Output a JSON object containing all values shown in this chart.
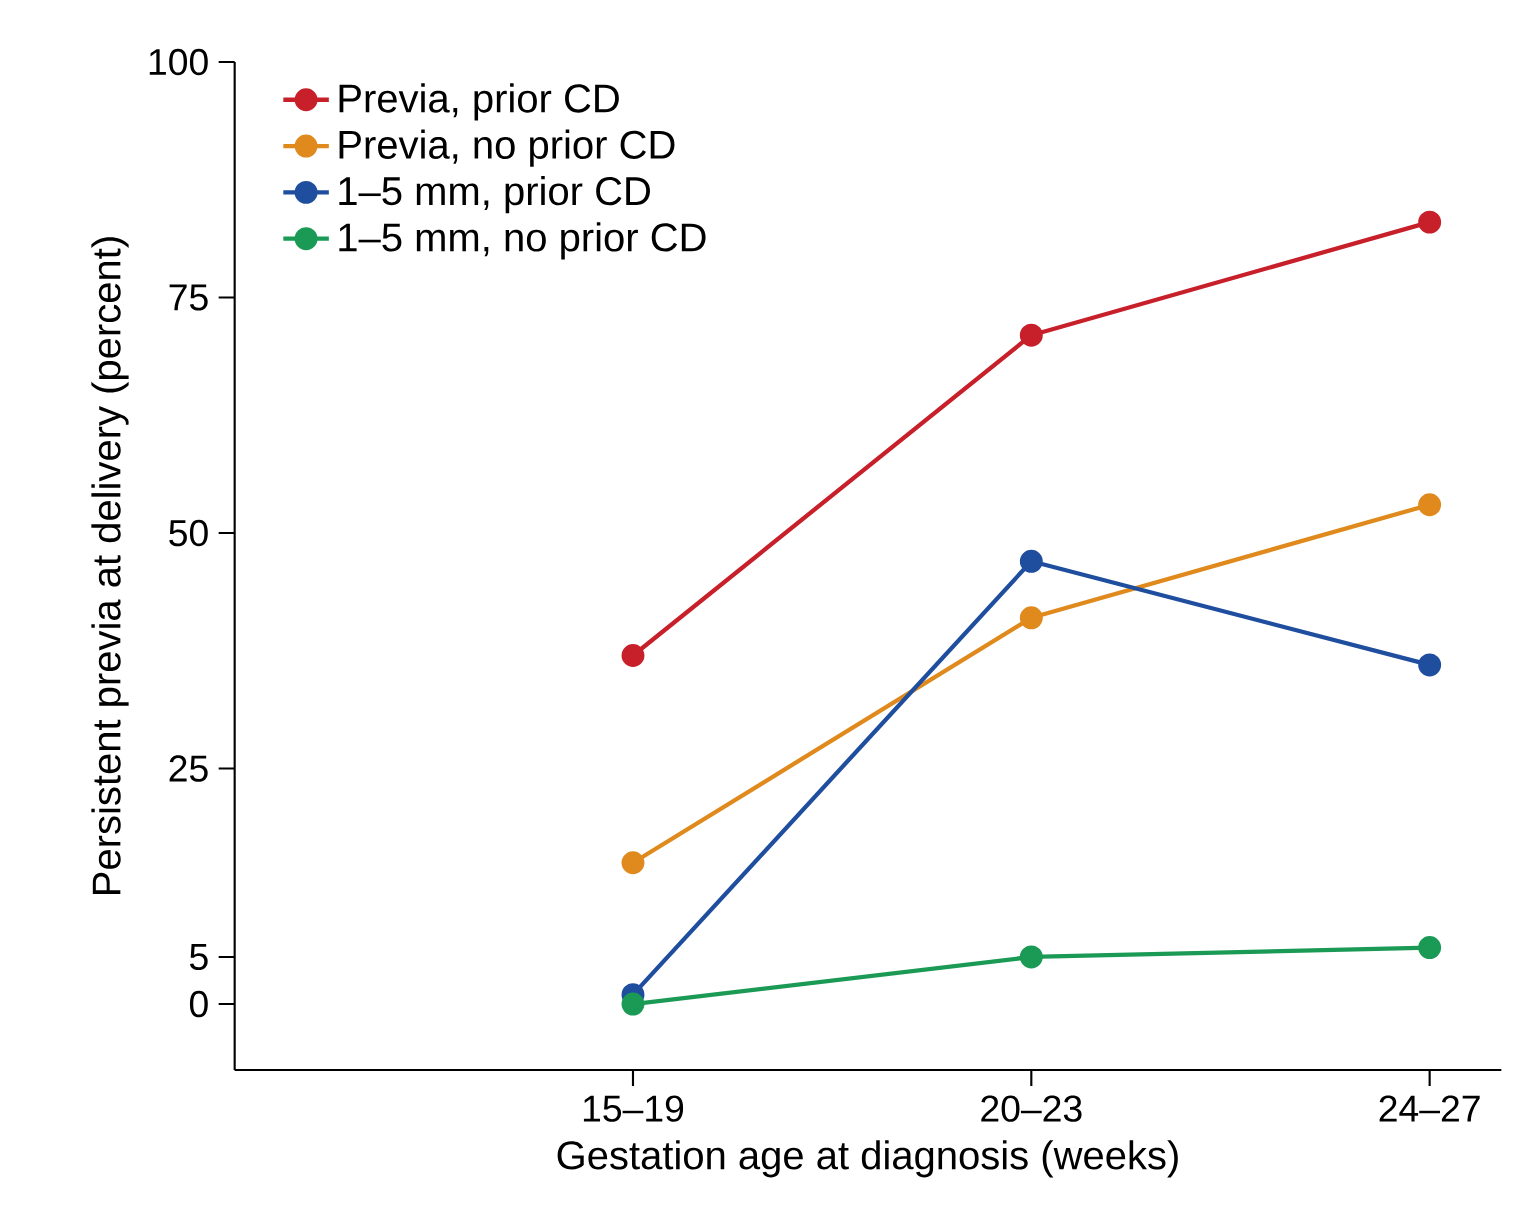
{
  "chart_data": {
    "type": "line",
    "xlabel": "Gestation age at diagnosis (weeks)",
    "ylabel": "Persistent previa at delivery (percent)",
    "categories": [
      "15–19",
      "20–23",
      "24–27"
    ],
    "series": [
      {
        "name": "Previa, prior CD",
        "color": "#c8202a",
        "values": [
          37,
          71,
          83
        ]
      },
      {
        "name": "Previa, no prior CD",
        "color": "#e08a1e",
        "values": [
          15,
          41,
          53
        ]
      },
      {
        "name": "1–5 mm, prior CD",
        "color": "#1f4e9f",
        "values": [
          1,
          47,
          36
        ]
      },
      {
        "name": "1–5 mm, no prior CD",
        "color": "#1a9a55",
        "values": [
          0,
          5,
          6
        ]
      }
    ],
    "ylim": [
      -7,
      100
    ],
    "yticks": [
      0,
      5,
      25,
      50,
      75,
      100
    ],
    "legend": "top left",
    "marker": "circle",
    "line_style": "solid"
  }
}
